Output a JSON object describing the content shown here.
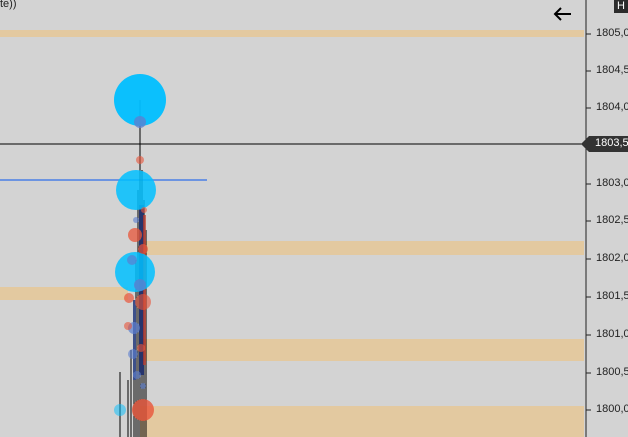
{
  "header": {
    "corner_text": "te))",
    "corner_box_label": "H"
  },
  "icons": {
    "back": "arrow-left-icon"
  },
  "price_axis": {
    "labels": [
      "1805,0",
      "1804,5",
      "1804,0",
      "1803,0",
      "1802,5",
      "1802,0",
      "1801,5",
      "1801,0",
      "1800,5",
      "1800,0"
    ],
    "current_price": "1803,5"
  },
  "colors": {
    "background": "#d3d3d3",
    "zone": "#e3c9a0",
    "bubble_blue": "#00bfff",
    "bubble_red": "#e8553a",
    "crosshair": "#000000",
    "level_line": "#4a7fe6",
    "current_tag": "#333333"
  }
}
